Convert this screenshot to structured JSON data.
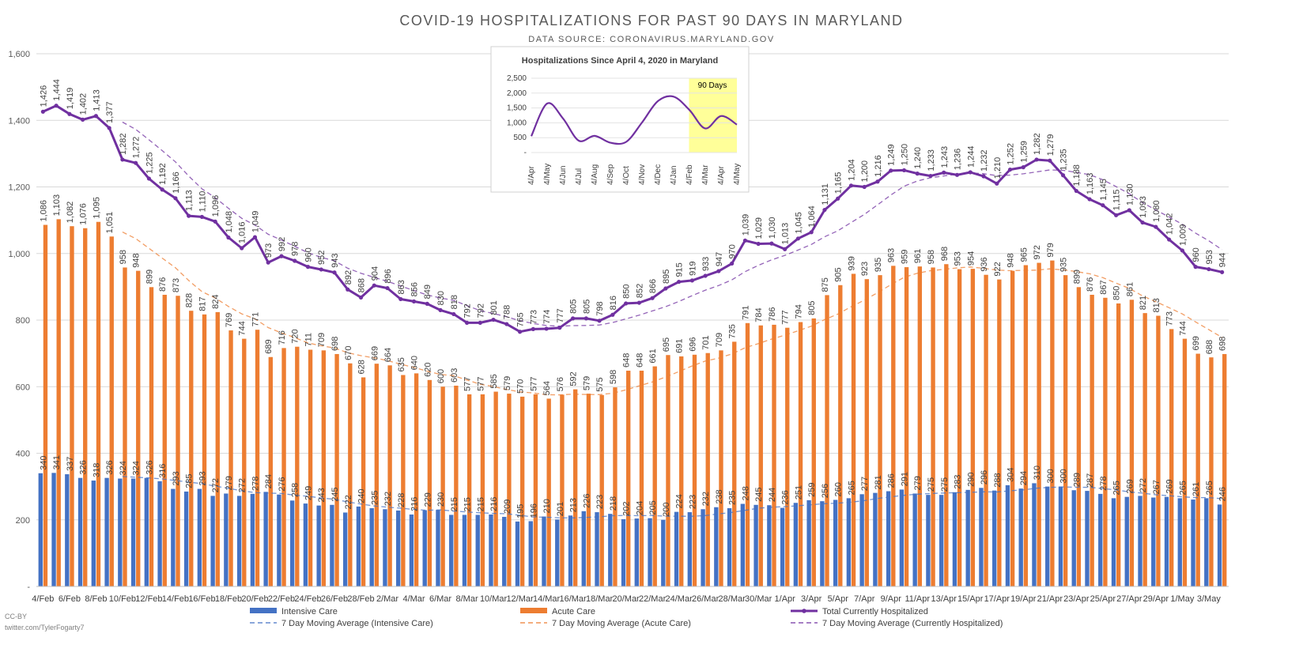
{
  "chart_data": [
    {
      "type": "bar",
      "title": "COVID-19 HOSPITALIZATIONS FOR PAST 90 DAYS IN MARYLAND",
      "subtitle": "DATA SOURCE: CORONAVIRUS.MARYLAND.GOV",
      "ylim": [
        0,
        1600
      ],
      "yticks": [
        0,
        200,
        400,
        600,
        800,
        1000,
        1200,
        1400,
        1600
      ],
      "ytick_labels": [
        "-",
        "200",
        "400",
        "600",
        "800",
        "1,000",
        "1,200",
        "1,400",
        "1,600"
      ],
      "grid": true,
      "legend_position": "bottom",
      "tick_labels": [
        "4/Feb",
        "6/Feb",
        "8/Feb",
        "10/Feb",
        "12/Feb",
        "14/Feb",
        "16/Feb",
        "18/Feb",
        "20/Feb",
        "22/Feb",
        "24/Feb",
        "26/Feb",
        "28/Feb",
        "2/Mar",
        "4/Mar",
        "6/Mar",
        "8/Mar",
        "10/Mar",
        "12/Mar",
        "14/Mar",
        "16/Mar",
        "18/Mar",
        "20/Mar",
        "22/Mar",
        "24/Mar",
        "26/Mar",
        "28/Mar",
        "30/Mar",
        "1/Apr",
        "3/Apr",
        "5/Apr",
        "7/Apr",
        "9/Apr",
        "11/Apr",
        "13/Apr",
        "15/Apr",
        "17/Apr",
        "19/Apr",
        "21/Apr",
        "23/Apr",
        "25/Apr",
        "27/Apr",
        "29/Apr",
        "1/May",
        "3/May"
      ],
      "series": [
        {
          "name": "Intensive Care",
          "kind": "bar",
          "color": "#4472c4",
          "values": [
            340,
            341,
            337,
            326,
            318,
            326,
            324,
            324,
            326,
            316,
            293,
            285,
            293,
            272,
            279,
            272,
            278,
            284,
            276,
            258,
            249,
            243,
            245,
            222,
            240,
            235,
            232,
            228,
            216,
            229,
            230,
            215,
            215,
            215,
            216,
            209,
            195,
            196,
            210,
            201,
            213,
            226,
            223,
            218,
            202,
            204,
            205,
            200,
            224,
            223,
            232,
            238,
            235,
            248,
            245,
            244,
            236,
            251,
            259,
            256,
            260,
            265,
            277,
            281,
            286,
            291,
            279,
            275,
            275,
            283,
            290,
            296,
            288,
            304,
            294,
            310,
            300,
            300,
            289,
            287,
            278,
            265,
            269,
            272,
            267,
            269,
            265,
            261,
            265,
            246
          ]
        },
        {
          "name": "Acute Care",
          "kind": "bar",
          "color": "#ed7d31",
          "values": [
            1086,
            1103,
            1082,
            1076,
            1095,
            1051,
            958,
            948,
            899,
            876,
            873,
            828,
            817,
            824,
            769,
            744,
            771,
            689,
            716,
            720,
            711,
            709,
            698,
            670,
            628,
            669,
            664,
            635,
            640,
            620,
            600,
            603,
            577,
            577,
            585,
            579,
            570,
            577,
            564,
            576,
            592,
            579,
            575,
            598,
            648,
            648,
            661,
            695,
            691,
            696,
            701,
            709,
            735,
            791,
            784,
            786,
            777,
            794,
            805,
            875,
            905,
            939,
            923,
            935,
            963,
            959,
            961,
            958,
            968,
            953,
            954,
            936,
            922,
            948,
            965,
            972,
            979,
            935,
            899,
            876,
            867,
            850,
            861,
            821,
            813,
            773,
            744,
            699,
            688,
            698
          ]
        },
        {
          "name": "Total Currently Hospitalized",
          "kind": "line",
          "color": "#7030a0",
          "values": [
            1426,
            1444,
            1419,
            1402,
            1413,
            1377,
            1282,
            1272,
            1225,
            1192,
            1166,
            1113,
            1110,
            1096,
            1048,
            1016,
            1049,
            973,
            992,
            978,
            960,
            952,
            943,
            892,
            868,
            904,
            896,
            863,
            856,
            849,
            830,
            818,
            792,
            792,
            801,
            788,
            765,
            773,
            774,
            777,
            805,
            805,
            798,
            816,
            850,
            852,
            866,
            895,
            915,
            919,
            933,
            947,
            970,
            1039,
            1029,
            1030,
            1013,
            1045,
            1064,
            1131,
            1165,
            1204,
            1200,
            1216,
            1249,
            1250,
            1240,
            1233,
            1243,
            1236,
            1244,
            1232,
            1210,
            1252,
            1259,
            1282,
            1279,
            1235,
            1188,
            1163,
            1145,
            1115,
            1130,
            1093,
            1080,
            1042,
            1009,
            960,
            953,
            944
          ]
        },
        {
          "name": "7 Day Moving Average (Intensive Care)",
          "kind": "moving-average",
          "of": 0,
          "color": "#4472c4"
        },
        {
          "name": "7 Day Moving Average (Acute Care)",
          "kind": "moving-average",
          "of": 1,
          "color": "#ed7d31"
        },
        {
          "name": "7 Day Moving Average (Currently Hospitalized)",
          "kind": "moving-average",
          "of": 2,
          "color": "#7030a0"
        }
      ]
    },
    {
      "type": "line",
      "title": "Hospitalizations Since April 4, 2020 in Maryland",
      "annotation": "90 Days",
      "ylim": [
        0,
        2500
      ],
      "yticks": [
        0,
        500,
        1000,
        1500,
        2000,
        2500
      ],
      "ytick_labels": [
        "-",
        "500",
        "1,000",
        "1,500",
        "2,000",
        "2,500"
      ],
      "x": [
        "4/Apr",
        "4/May",
        "4/Jun",
        "4/Jul",
        "4/Aug",
        "4/Sep",
        "4/Oct",
        "4/Nov",
        "4/Dec",
        "4/Jan",
        "4/Feb",
        "4/Mar",
        "4/Apr",
        "4/May"
      ],
      "values": [
        550,
        1650,
        1150,
        400,
        560,
        330,
        360,
        1010,
        1730,
        1880,
        1430,
        810,
        1230,
        940
      ],
      "color": "#7030a0",
      "highlight_color": "#ffff99"
    }
  ],
  "footer": {
    "license": "CC-BY",
    "credit": "twitter.com/TylerFogarty7"
  }
}
